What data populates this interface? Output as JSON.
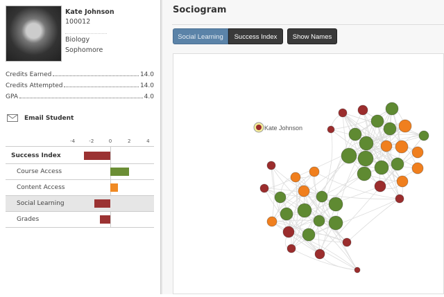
{
  "student": {
    "name": "Kate Johnson",
    "id": "100012",
    "major": "Biology",
    "year": "Sophomore"
  },
  "stats": [
    {
      "label": "Credits Earned",
      "value": "14.0"
    },
    {
      "label": "Credits Attempted",
      "value": "14.0"
    },
    {
      "label": "GPA",
      "value": "4.0"
    }
  ],
  "email_label": "Email Student",
  "chart_data": {
    "type": "bar",
    "orientation": "horizontal",
    "xlim": [
      -4,
      4
    ],
    "ticks": [
      "-4",
      "-2",
      "0",
      "2",
      "4"
    ],
    "categories": [
      "Success Index",
      "Course Access",
      "Content Access",
      "Social Learning",
      "Grades"
    ],
    "values": [
      -2.8,
      2.0,
      0.8,
      -1.7,
      -1.1
    ],
    "colors": [
      "#9b3232",
      "#6b8e35",
      "#f08a24",
      "#9b3232",
      "#9b3232"
    ],
    "selected": "Social Learning"
  },
  "sociogram": {
    "title": "Sociogram",
    "buttons": {
      "social": "Social Learning",
      "success": "Success Index",
      "names": "Show Names"
    },
    "highlight_label": "Kate Johnson",
    "colors": {
      "red": "#9b2d2d",
      "green": "#5f8a32",
      "orange": "#f07f1e",
      "highlight": "#f5ef9a"
    }
  }
}
